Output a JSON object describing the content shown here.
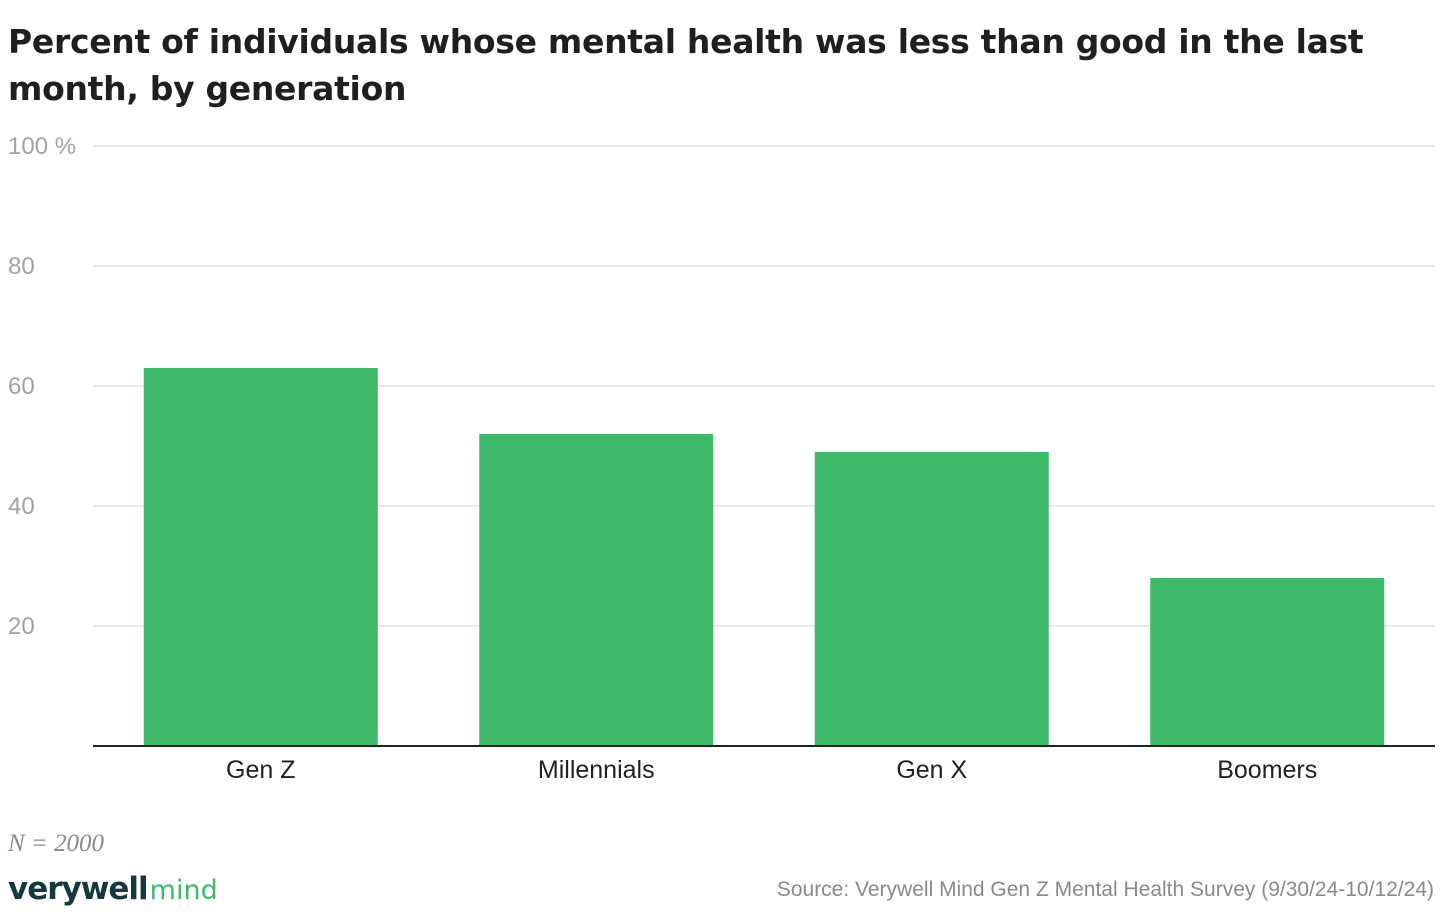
{
  "chart_data": {
    "type": "bar",
    "title": "Percent of individuals whose mental health was less than good in the last month, by generation",
    "categories": [
      "Gen Z",
      "Millennials",
      "Gen X",
      "Boomers"
    ],
    "values": [
      63,
      52,
      49,
      28
    ],
    "ylim": [
      0,
      100
    ],
    "yticks": [
      20,
      40,
      60,
      80,
      100
    ],
    "ytick_labels": [
      "20",
      "40",
      "60",
      "80",
      "100 %"
    ],
    "xlabel": "",
    "ylabel": "",
    "grid": true,
    "legend": "none",
    "bar_color": "#3fba6a",
    "gridline_color": "#e2e2e2",
    "axis_color": "#222222"
  },
  "footer": {
    "note": "N = 2000",
    "brand_primary": "verywell",
    "brand_secondary": "mind",
    "source": "Source: Verywell Mind Gen Z Mental Health Survey (9/30/24-10/12/24)"
  }
}
